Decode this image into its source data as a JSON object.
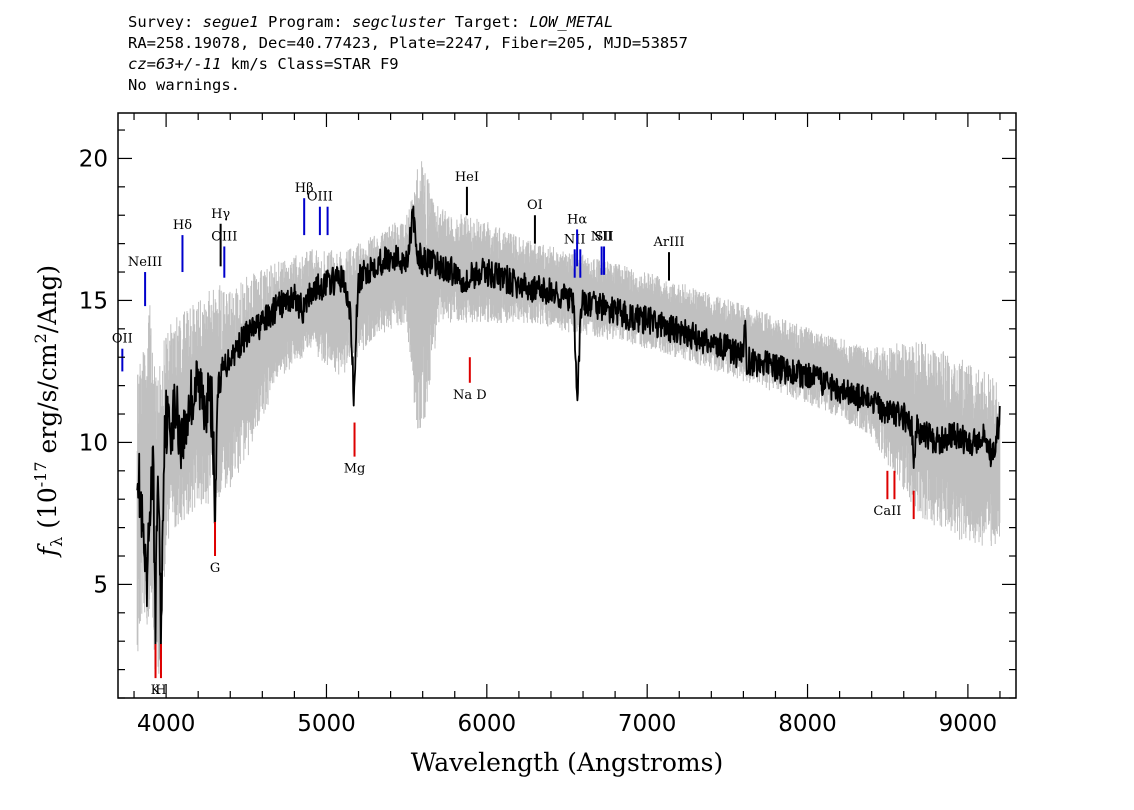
{
  "header": {
    "line1": {
      "survey_label": "Survey:",
      "survey": "segue1",
      "program_label": "Program:",
      "program": "segcluster",
      "target_label": "Target:",
      "target": "LOW_METAL"
    },
    "line2": "RA=258.19078, Dec=40.77423, Plate=2247, Fiber=205, MJD=53857",
    "line3": {
      "cz": "cz=63+/-11",
      "rest": " km/s Class=STAR F9"
    },
    "line4": "No warnings."
  },
  "chart_data": {
    "type": "line",
    "xlabel": "Wavelength (Angstroms)",
    "ylabel": "f_λ (10^-17 erg/s/cm^2/Ang)",
    "xlim": [
      3700,
      9300
    ],
    "ylim": [
      1,
      21.6
    ],
    "x_ticks": [
      4000,
      5000,
      6000,
      7000,
      8000,
      9000
    ],
    "y_ticks": [
      5,
      10,
      15,
      20
    ],
    "grid": false,
    "colors": {
      "flux": "#000000",
      "noise": "#c0c0c0",
      "emission": "#0000cc",
      "absorption": "#dd0000",
      "neutral": "#000000"
    },
    "series": [
      {
        "role": "flux",
        "x": [
          3820,
          3850,
          3880,
          3900,
          3920,
          3933,
          3950,
          3968,
          3990,
          4020,
          4060,
          4102,
          4150,
          4200,
          4250,
          4290,
          4305,
          4320,
          4350,
          4400,
          4500,
          4600,
          4700,
          4800,
          4861,
          4900,
          5000,
          5100,
          5150,
          5172,
          5185,
          5200,
          5250,
          5300,
          5400,
          5500,
          5540,
          5560,
          5600,
          5700,
          5800,
          5890,
          5900,
          6000,
          6100,
          6200,
          6300,
          6400,
          6500,
          6540,
          6563,
          6590,
          6700,
          6800,
          6900,
          7000,
          7100,
          7200,
          7300,
          7400,
          7500,
          7600,
          7610,
          7620,
          7700,
          7800,
          7900,
          8000,
          8100,
          8200,
          8300,
          8400,
          8500,
          8600,
          8650,
          8662,
          8680,
          8700,
          8800,
          8900,
          9000,
          9100,
          9150,
          9180,
          9200
        ],
        "y": [
          9.5,
          7.0,
          4.5,
          8.0,
          9.0,
          3.5,
          9.5,
          3.0,
          11.0,
          10.5,
          11.2,
          10.0,
          11.5,
          12.0,
          11.5,
          11.2,
          6.9,
          11.8,
          12.5,
          13.0,
          13.8,
          14.2,
          14.8,
          15.1,
          14.6,
          15.3,
          15.6,
          15.8,
          14.5,
          11.4,
          14.0,
          15.7,
          16.0,
          16.3,
          16.5,
          16.4,
          18.0,
          16.7,
          16.4,
          16.2,
          16.0,
          15.6,
          15.9,
          16.0,
          15.8,
          15.5,
          15.4,
          15.3,
          15.1,
          14.9,
          11.5,
          14.9,
          14.8,
          14.6,
          14.4,
          14.3,
          14.1,
          13.9,
          13.7,
          13.5,
          13.3,
          13.0,
          14.2,
          12.9,
          12.8,
          12.6,
          12.5,
          12.3,
          12.1,
          11.9,
          11.6,
          11.4,
          11.1,
          10.9,
          10.6,
          8.9,
          10.5,
          10.4,
          10.0,
          10.3,
          10.0,
          10.2,
          9.5,
          10.3,
          10.9
        ]
      },
      {
        "role": "noise",
        "x": [
          3820,
          3860,
          3900,
          3933,
          3968,
          4000,
          4100,
          4200,
          4300,
          4400,
          4500,
          4700,
          4900,
          5100,
          5300,
          5500,
          5580,
          5700,
          6000,
          6300,
          6600,
          6900,
          7200,
          7500,
          7800,
          8100,
          8400,
          8700,
          9000,
          9200
        ],
        "y_low": [
          2.0,
          2.5,
          3.0,
          1.2,
          1.1,
          6.0,
          6.8,
          7.2,
          7.5,
          8.0,
          9.0,
          12.0,
          13.0,
          12.0,
          13.5,
          14.0,
          8.8,
          14.0,
          14.0,
          14.0,
          13.6,
          13.3,
          12.8,
          12.2,
          11.6,
          11.0,
          10.0,
          7.0,
          6.0,
          6.0
        ],
        "y_high": [
          13.0,
          14.0,
          15.8,
          13.0,
          13.5,
          14.5,
          15.0,
          15.5,
          16.0,
          16.2,
          16.2,
          16.6,
          17.0,
          17.0,
          17.5,
          18.2,
          20.9,
          18.5,
          18.0,
          17.2,
          16.8,
          16.3,
          15.8,
          15.2,
          14.6,
          14.0,
          13.5,
          14.0,
          13.2,
          12.5
        ]
      }
    ],
    "line_markers": [
      {
        "label": "OII",
        "x": 3727,
        "y0": 12.5,
        "y1": 13.3,
        "kind": "emission"
      },
      {
        "label": "NeIII",
        "x": 3869,
        "y0": 14.8,
        "y1": 16.0,
        "kind": "emission"
      },
      {
        "label": "Hδ",
        "x": 4102,
        "y0": 16.0,
        "y1": 17.3,
        "kind": "emission"
      },
      {
        "label": "Hγ",
        "x": 4340,
        "y0": 16.2,
        "y1": 17.7,
        "kind": "neutral"
      },
      {
        "label": "OIII",
        "x": 4363,
        "y0": 15.8,
        "y1": 16.9,
        "kind": "emission"
      },
      {
        "label": "Hβ",
        "x": 4861,
        "y0": 17.3,
        "y1": 18.6,
        "kind": "emission"
      },
      {
        "label": "OIII",
        "x": 4959,
        "y0": 17.3,
        "y1": 18.3,
        "kind": "emission"
      },
      {
        "label": "",
        "x": 5007,
        "y0": 17.3,
        "y1": 18.3,
        "kind": "emission"
      },
      {
        "label": "HeI",
        "x": 5876,
        "y0": 18.0,
        "y1": 19.0,
        "kind": "neutral"
      },
      {
        "label": "OI",
        "x": 6300,
        "y0": 17.0,
        "y1": 18.0,
        "kind": "neutral"
      },
      {
        "label": "NII",
        "x": 6548,
        "y0": 15.8,
        "y1": 16.8,
        "kind": "emission"
      },
      {
        "label": "Hα",
        "x": 6563,
        "y0": 16.2,
        "y1": 17.5,
        "kind": "emission"
      },
      {
        "label": "",
        "x": 6583,
        "y0": 15.8,
        "y1": 16.8,
        "kind": "emission"
      },
      {
        "label": "NII",
        "x": 6716,
        "y0": 15.9,
        "y1": 16.9,
        "kind": "emission"
      },
      {
        "label": "SII",
        "x": 6731,
        "y0": 15.9,
        "y1": 16.9,
        "kind": "emission"
      },
      {
        "label": "ArIII",
        "x": 7136,
        "y0": 15.7,
        "y1": 16.7,
        "kind": "neutral"
      },
      {
        "label": "Na D",
        "x": 5894,
        "y0": 12.1,
        "y1": 13.0,
        "kind": "absorption"
      },
      {
        "label": "Mg",
        "x": 5175,
        "y0": 9.5,
        "y1": 10.7,
        "kind": "absorption"
      },
      {
        "label": "G",
        "x": 4305,
        "y0": 6.0,
        "y1": 7.2,
        "kind": "absorption"
      },
      {
        "label": "K",
        "x": 3934,
        "y0": 1.7,
        "y1": 2.9,
        "kind": "absorption"
      },
      {
        "label": "H",
        "x": 3968,
        "y0": 1.7,
        "y1": 2.9,
        "kind": "absorption"
      },
      {
        "label": "CaII",
        "x": 8498,
        "y0": 8.0,
        "y1": 9.0,
        "kind": "absorption"
      },
      {
        "label": "",
        "x": 8542,
        "y0": 8.0,
        "y1": 9.0,
        "kind": "absorption"
      },
      {
        "label": "",
        "x": 8662,
        "y0": 7.3,
        "y1": 8.3,
        "kind": "absorption"
      }
    ]
  }
}
